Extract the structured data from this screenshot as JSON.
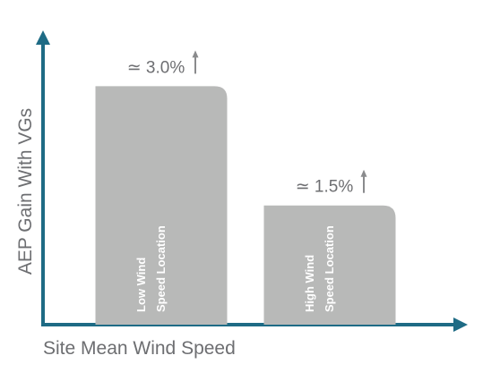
{
  "chart_data": {
    "type": "bar",
    "title": "",
    "xlabel": "Site Mean Wind Speed",
    "ylabel": "AEP Gain With VGs",
    "categories": [
      "Low Wind\nSpeed Location",
      "High Wind\nSpeed Location"
    ],
    "values": [
      3.0,
      1.5
    ],
    "value_labels": [
      "≃ 3.0%",
      "≃ 1.5%"
    ],
    "value_markers": [
      "up-arrow-icon",
      "up-arrow-icon"
    ],
    "unit": "%",
    "ylim": [
      0,
      3.5
    ],
    "grid": false,
    "legend": "none",
    "axis_ticks": false,
    "colors": {
      "axis": "#1e6b85",
      "bar": "#b8b9b8",
      "bar_text": "#ffffff",
      "label_text": "#6d6e71",
      "arrow": "#8a8b8d"
    }
  }
}
